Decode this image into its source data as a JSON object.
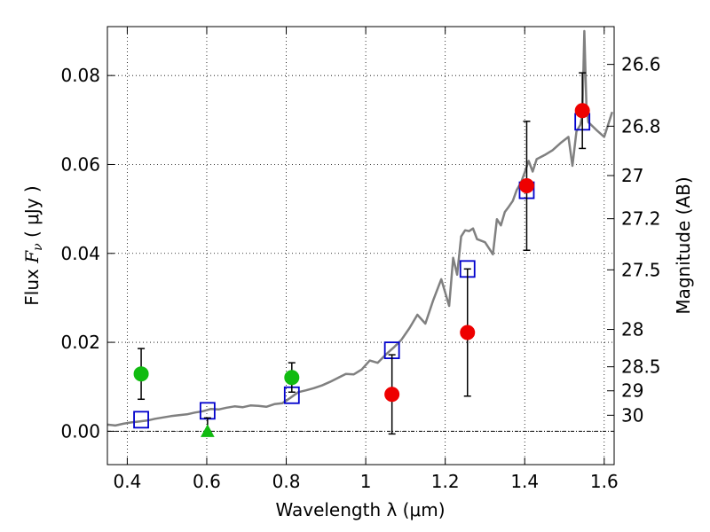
{
  "chart_data": {
    "type": "scatter",
    "xlabel": "Wavelength  λ (μm)",
    "ylabel_text": "Flux  ",
    "ylabel_symbol": "F",
    "ylabel_subscript": "ν",
    "ylabel_units": "  ( μJy )",
    "y2label": "Magnitude (AB)",
    "xlim": [
      0.35,
      1.625
    ],
    "ylim": [
      -0.0075,
      0.091
    ],
    "grid": true,
    "x_ticks": [
      0.4,
      0.6,
      0.8,
      1.0,
      1.2,
      1.4,
      1.6
    ],
    "x_tick_labels": [
      "0.4",
      "0.6",
      "0.8",
      "1",
      "1.2",
      "1.4",
      "1.6"
    ],
    "y_ticks": [
      0.0,
      0.02,
      0.04,
      0.06,
      0.08
    ],
    "y_tick_labels": [
      "0.00",
      "0.02",
      "0.04",
      "0.06",
      "0.08"
    ],
    "y2_ticks": [
      {
        "label": "26.6",
        "flux": 0.0825
      },
      {
        "label": "26.8",
        "flux": 0.0686
      },
      {
        "label": "27",
        "flux": 0.0575
      },
      {
        "label": "27.2",
        "flux": 0.0478
      },
      {
        "label": "27.5",
        "flux": 0.0363
      },
      {
        "label": "28",
        "flux": 0.0229
      },
      {
        "label": "28.5",
        "flux": 0.0145
      },
      {
        "label": "29",
        "flux": 0.0091
      },
      {
        "label": "30",
        "flux": 0.0036
      }
    ],
    "zero_line": 0.0,
    "sed_model": {
      "color": "#808080",
      "x": [
        0.35,
        0.37,
        0.39,
        0.41,
        0.43,
        0.45,
        0.47,
        0.49,
        0.51,
        0.53,
        0.55,
        0.57,
        0.59,
        0.61,
        0.63,
        0.65,
        0.67,
        0.69,
        0.71,
        0.73,
        0.75,
        0.77,
        0.79,
        0.81,
        0.83,
        0.85,
        0.87,
        0.89,
        0.91,
        0.93,
        0.95,
        0.97,
        0.99,
        1.01,
        1.03,
        1.05,
        1.07,
        1.09,
        1.11,
        1.13,
        1.15,
        1.17,
        1.19,
        1.21,
        1.22,
        1.23,
        1.24,
        1.25,
        1.26,
        1.27,
        1.28,
        1.3,
        1.32,
        1.33,
        1.34,
        1.35,
        1.36,
        1.37,
        1.38,
        1.39,
        1.4,
        1.41,
        1.42,
        1.43,
        1.45,
        1.47,
        1.49,
        1.5,
        1.51,
        1.52,
        1.53,
        1.54,
        1.545,
        1.55,
        1.555,
        1.56,
        1.58,
        1.6,
        1.62
      ],
      "y": [
        0.0015,
        0.0013,
        0.0017,
        0.002,
        0.0022,
        0.0024,
        0.0028,
        0.0031,
        0.0034,
        0.0036,
        0.0038,
        0.0042,
        0.0045,
        0.005,
        0.0049,
        0.0053,
        0.0056,
        0.0054,
        0.0058,
        0.0057,
        0.0055,
        0.0061,
        0.0063,
        0.0075,
        0.0088,
        0.0092,
        0.0097,
        0.0103,
        0.0111,
        0.012,
        0.0129,
        0.0128,
        0.0139,
        0.0159,
        0.0154,
        0.0172,
        0.0188,
        0.0206,
        0.0232,
        0.0262,
        0.0242,
        0.0295,
        0.0342,
        0.0282,
        0.039,
        0.0352,
        0.0438,
        0.0452,
        0.045,
        0.0456,
        0.0432,
        0.0425,
        0.0398,
        0.0477,
        0.0463,
        0.0493,
        0.0505,
        0.0518,
        0.0543,
        0.0558,
        0.0582,
        0.0608,
        0.0584,
        0.0612,
        0.0621,
        0.0632,
        0.0648,
        0.0655,
        0.0662,
        0.0597,
        0.0674,
        0.0689,
        0.0712,
        0.09,
        0.0735,
        0.0695,
        0.0678,
        0.0662,
        0.0718
      ]
    },
    "model_photometry": {
      "color": "#0000cc",
      "x": [
        0.435,
        0.602,
        0.814,
        1.066,
        1.256,
        1.405,
        1.545
      ],
      "y": [
        0.0026,
        0.0046,
        0.0081,
        0.0182,
        0.0365,
        0.0542,
        0.0696
      ]
    },
    "detections_green": {
      "color": "#11bb11",
      "x": [
        0.435,
        0.814
      ],
      "y": [
        0.0129,
        0.0121
      ],
      "err": [
        0.0057,
        0.0033
      ]
    },
    "upper_limit_green": {
      "color": "#11bb11",
      "x": [
        0.602
      ],
      "y": [
        0.0
      ],
      "err_low": [
        0.0
      ],
      "err_high": [
        0.003
      ]
    },
    "detections_red": {
      "color": "#ee0000",
      "x": [
        1.066,
        1.256,
        1.405,
        1.545
      ],
      "y": [
        0.0083,
        0.0222,
        0.0552,
        0.0721
      ],
      "err": [
        0.0089,
        0.0143,
        0.0145,
        0.0085
      ]
    }
  }
}
